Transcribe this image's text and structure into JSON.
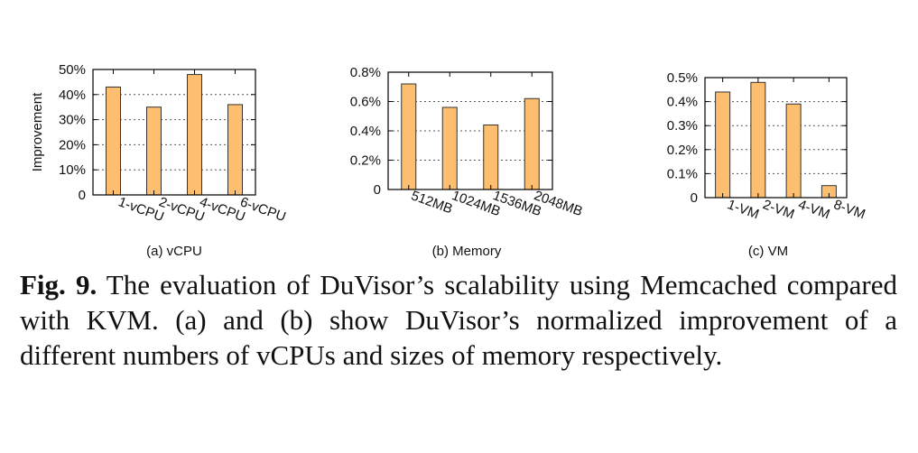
{
  "colors": {
    "bar_fill": "#fdbf6f",
    "bar_stroke": "#333333",
    "axis": "#000000",
    "grid": "#555555"
  },
  "chart_data": [
    {
      "type": "bar",
      "categories": [
        "1-vCPU",
        "2-vCPU",
        "4-vCPU",
        "6-vCPU"
      ],
      "values": [
        43,
        35,
        48,
        36
      ],
      "title": "(a) vCPU",
      "xlabel": "",
      "ylabel": "Improvement",
      "ylim": [
        0,
        50
      ],
      "yticks": [
        0,
        10,
        20,
        30,
        40,
        50
      ],
      "ytick_labels": [
        "0",
        "10%",
        "20%",
        "30%",
        "40%",
        "50%"
      ],
      "grid": true
    },
    {
      "type": "bar",
      "categories": [
        "512MB",
        "1024MB",
        "1536MB",
        "2048MB"
      ],
      "values": [
        0.72,
        0.56,
        0.44,
        0.62
      ],
      "title": "(b) Memory",
      "xlabel": "",
      "ylabel": "",
      "ylim": [
        0,
        0.8
      ],
      "yticks": [
        0,
        0.2,
        0.4,
        0.6,
        0.8
      ],
      "ytick_labels": [
        "0",
        "0.2%",
        "0.4%",
        "0.6%",
        "0.8%"
      ],
      "grid": true
    },
    {
      "type": "bar",
      "categories": [
        "1-VM",
        "2-VM",
        "4-VM",
        "8-VM"
      ],
      "values": [
        0.44,
        0.48,
        0.39,
        0.05
      ],
      "title": "(c) VM",
      "xlabel": "",
      "ylabel": "",
      "ylim": [
        0,
        0.5
      ],
      "yticks": [
        0,
        0.1,
        0.2,
        0.3,
        0.4,
        0.5
      ],
      "ytick_labels": [
        "0",
        "0.1%",
        "0.2%",
        "0.3%",
        "0.4%",
        "0.5%"
      ],
      "grid": true
    }
  ],
  "caption": {
    "label": "Fig. 9.",
    "text": "The evaluation of DuVisor’s scalability using Memcached compared with KVM. (a) and (b) show DuVisor’s normalized improvement of a different numbers of vCPUs and sizes of memory respectively."
  }
}
